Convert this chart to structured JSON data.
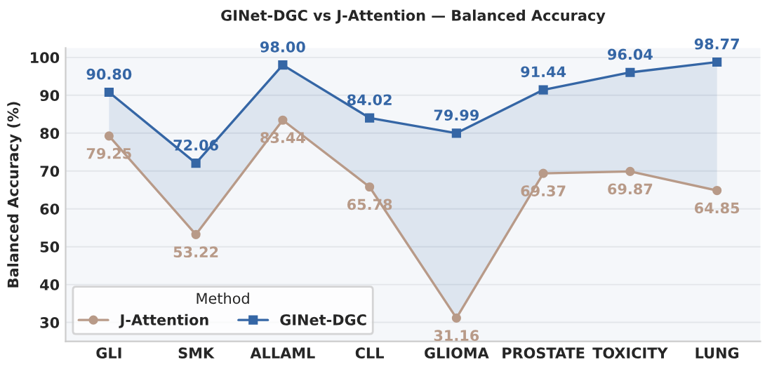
{
  "chart_data": {
    "type": "line",
    "title": "GINet-DGC vs J-Attention — Balanced Accuracy",
    "ylabel": "Balanced Accuracy (%)",
    "categories": [
      "GLI",
      "SMK",
      "ALLAML",
      "CLL",
      "GLIOMA",
      "PROSTATE",
      "TOXICITY",
      "LUNG"
    ],
    "series": [
      {
        "name": "J-Attention",
        "color": "#b89a88",
        "marker": "circle",
        "values": [
          79.25,
          53.22,
          83.44,
          65.78,
          31.16,
          69.37,
          69.87,
          64.85
        ],
        "value_labels": [
          "79.25",
          "53.22",
          "83.44",
          "65.78",
          "31.16",
          "69.37",
          "69.87",
          "64.85"
        ]
      },
      {
        "name": "GINet-DGC",
        "color": "#3566a5",
        "marker": "square",
        "values": [
          90.8,
          72.06,
          98.0,
          84.02,
          79.99,
          91.44,
          96.04,
          98.77
        ],
        "value_labels": [
          "90.80",
          "72.06",
          "98.00",
          "84.02",
          "79.99",
          "91.44",
          "96.04",
          "98.77"
        ],
        "lower": [
          79.25,
          53.22,
          83.44,
          65.78,
          31.16,
          69.37,
          69.87,
          64.85
        ],
        "upper": [
          90.8,
          72.06,
          98.0,
          84.02,
          79.99,
          91.44,
          96.04,
          98.77
        ]
      }
    ],
    "ylim": [
      25,
      102.5
    ],
    "yticks": [
      30,
      40,
      50,
      60,
      70,
      80,
      90,
      100
    ],
    "grid": "y",
    "legend": "bottom left",
    "legend_title": "Method",
    "line_style": "solid"
  }
}
